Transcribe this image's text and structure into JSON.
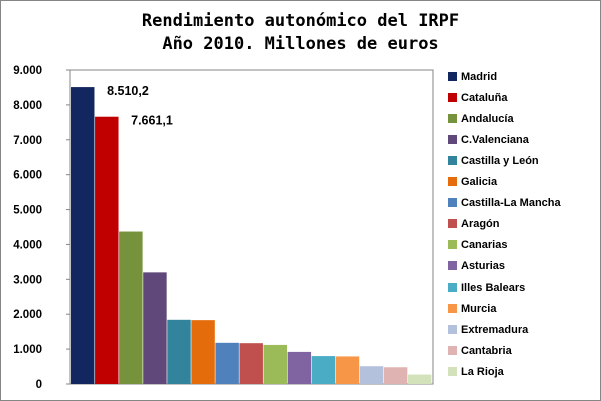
{
  "chart_data": {
    "type": "bar",
    "title_lines": [
      "Rendimiento autonómico del IRPF",
      "Año 2010. Millones de euros"
    ],
    "categories": [
      "Madrid",
      "Cataluña",
      "Andalucía",
      "C.Valenciana",
      "Castilla y León",
      "Galicia",
      "Castilla-La Mancha",
      "Aragón",
      "Canarias",
      "Asturias",
      "Illes Balears",
      "Murcia",
      "Extremadura",
      "Cantabria",
      "La Rioja"
    ],
    "values": [
      8510.2,
      7661.1,
      4370,
      3200,
      1840,
      1830,
      1180,
      1170,
      1120,
      920,
      800,
      790,
      510,
      480,
      270
    ],
    "colors": [
      "#12265f",
      "#c00000",
      "#76923c",
      "#60497a",
      "#31849b",
      "#e46c0a",
      "#4f81bd",
      "#c0504d",
      "#9bbb59",
      "#8064a2",
      "#4bacc6",
      "#f79646",
      "#b3c1dc",
      "#e0b3b3",
      "#d3e2bb"
    ],
    "data_labels": [
      {
        "index": 0,
        "text": "8.510,2"
      },
      {
        "index": 1,
        "text": "7.661,1"
      }
    ],
    "ylim": [
      0,
      9000
    ],
    "yticks": [
      0,
      1000,
      2000,
      3000,
      4000,
      5000,
      6000,
      7000,
      8000,
      9000
    ],
    "ytick_labels": [
      "0",
      "1.000",
      "2.000",
      "3.000",
      "4.000",
      "5.000",
      "6.000",
      "7.000",
      "8.000",
      "9.000"
    ],
    "xlabel": "",
    "ylabel": "",
    "grid": false,
    "legend_position": "right"
  }
}
